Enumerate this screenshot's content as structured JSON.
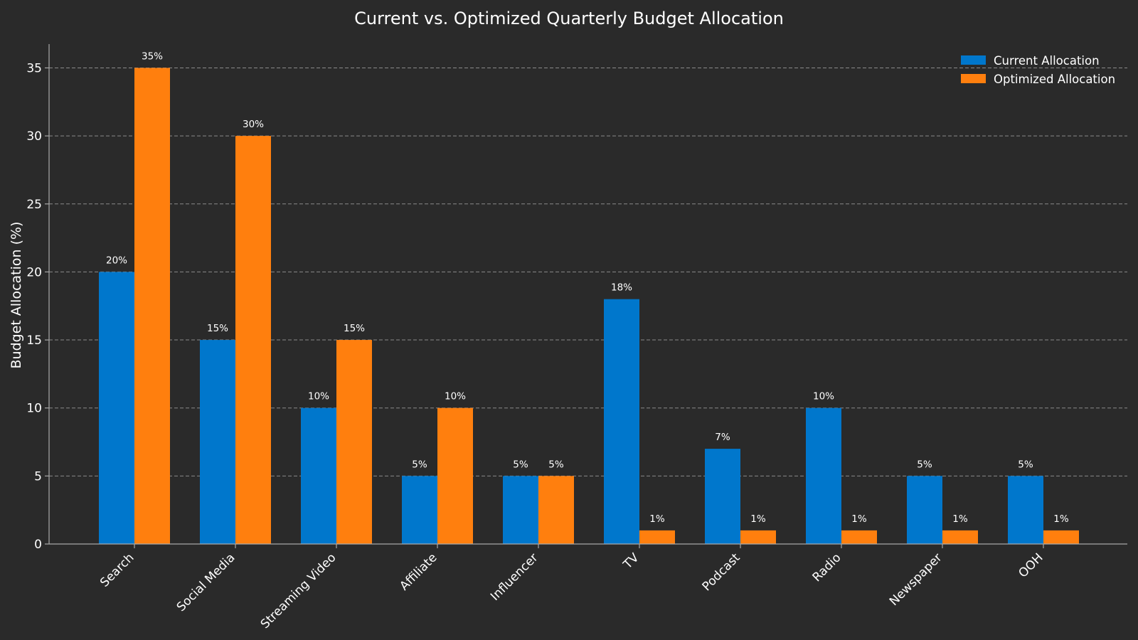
{
  "chart_data": {
    "type": "bar",
    "title": "Current vs. Optimized Quarterly Budget Allocation",
    "xlabel": "",
    "ylabel": "Budget Allocation (%)",
    "ylim": [
      0,
      36.75
    ],
    "yticks": [
      0,
      5,
      10,
      15,
      20,
      25,
      30,
      35
    ],
    "grid": "horizontal dashed",
    "legend_position": "top-right",
    "categories": [
      "Search",
      "Social Media",
      "Streaming Video",
      "Affiliate",
      "Influencer",
      "TV",
      "Podcast",
      "Radio",
      "Newspaper",
      "OOH"
    ],
    "series": [
      {
        "name": "Current Allocation",
        "color": "#0077cc",
        "values": [
          20,
          15,
          10,
          5,
          5,
          18,
          7,
          10,
          5,
          5
        ],
        "labels": [
          "20%",
          "15%",
          "10%",
          "5%",
          "5%",
          "18%",
          "7%",
          "10%",
          "5%",
          "5%"
        ]
      },
      {
        "name": "Optimized Allocation",
        "color": "#ff7f0e",
        "values": [
          35,
          30,
          15,
          10,
          5,
          1,
          1,
          1,
          1,
          1
        ],
        "labels": [
          "35%",
          "30%",
          "15%",
          "10%",
          "5%",
          "1%",
          "1%",
          "1%",
          "1%",
          "1%"
        ]
      }
    ]
  }
}
